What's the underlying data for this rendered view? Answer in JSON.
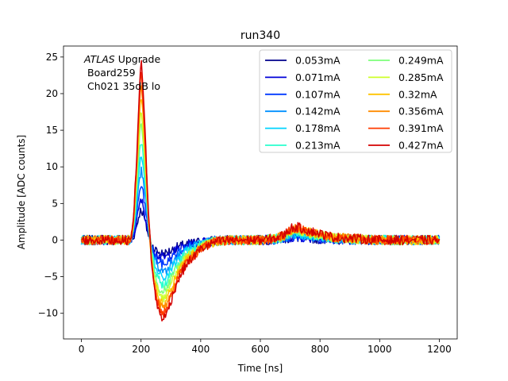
{
  "chart_data": {
    "type": "line",
    "title": "run340",
    "xlabel": "Time [ns]",
    "ylabel": "Amplitude [ADC counts]",
    "xlim": [
      -60,
      1260
    ],
    "ylim": [
      -13.5,
      26.5
    ],
    "xticks": [
      0,
      200,
      400,
      600,
      800,
      1000,
      1200
    ],
    "yticks": [
      -10,
      -5,
      0,
      5,
      10,
      15,
      20,
      25
    ],
    "grid": false,
    "legend_position": "top-right",
    "legend_columns": 2,
    "annotation": {
      "experiment": "ATLAS",
      "line1_suffix": " Upgrade",
      "line2": "Board259",
      "line3": "Ch021 35dB lo"
    },
    "pulse_shape": {
      "description_note": "approximate per-series pulse, amplitude-scaled",
      "time_ns": [
        0,
        165,
        175,
        185,
        195,
        200,
        205,
        215,
        225,
        235,
        245,
        255,
        265,
        275,
        285,
        300,
        320,
        350,
        400,
        450,
        500,
        600,
        650,
        680,
        700,
        720,
        750,
        800,
        850,
        1000,
        1200
      ],
      "unit_shape": [
        0,
        0,
        0.12,
        0.45,
        0.88,
        1.0,
        0.9,
        0.55,
        0.15,
        -0.12,
        -0.28,
        -0.37,
        -0.42,
        -0.44,
        -0.42,
        -0.34,
        -0.24,
        -0.14,
        -0.05,
        -0.01,
        0,
        0,
        0.01,
        0.03,
        0.065,
        0.075,
        0.06,
        0.035,
        0.015,
        0,
        0
      ]
    },
    "series": [
      {
        "name": "0.053mA",
        "color": "#00008b",
        "peak": 4.2
      },
      {
        "name": "0.071mA",
        "color": "#0000d8",
        "peak": 5.5
      },
      {
        "name": "0.107mA",
        "color": "#0039ff",
        "peak": 7.5
      },
      {
        "name": "0.142mA",
        "color": "#0090ff",
        "peak": 9.6
      },
      {
        "name": "0.178mA",
        "color": "#00d4ff",
        "peak": 11.8
      },
      {
        "name": "0.213mA",
        "color": "#29ffce",
        "peak": 13.9
      },
      {
        "name": "0.249mA",
        "color": "#7dff7a",
        "peak": 15.9
      },
      {
        "name": "0.285mA",
        "color": "#ceff29",
        "peak": 17.9
      },
      {
        "name": "0.32mA",
        "color": "#ffc400",
        "peak": 19.9
      },
      {
        "name": "0.356mA",
        "color": "#ff8c00",
        "peak": 21.4
      },
      {
        "name": "0.391mA",
        "color": "#ff3b00",
        "peak": 22.9
      },
      {
        "name": "0.427mA",
        "color": "#d40000",
        "peak": 24.4
      }
    ]
  }
}
